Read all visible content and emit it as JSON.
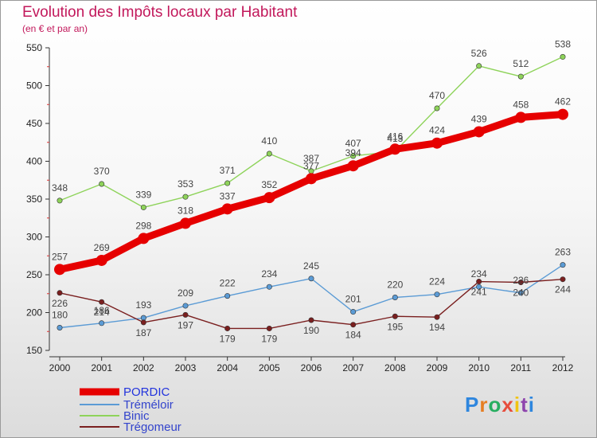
{
  "header": {
    "title": "Evolution des Impôts locaux par Habitant",
    "subtitle": "(en € et par an)"
  },
  "logo": {
    "text": "Proxiti",
    "letters": [
      "P",
      "r",
      "o",
      "x",
      "i",
      "t",
      "i"
    ]
  },
  "colors": {
    "title": "#c2185b",
    "PORDIC": "#e60000",
    "Tréméloir": "#5b9bd5",
    "Binic": "#8ed35a",
    "Trégomeur": "#7a1f1f"
  },
  "chart_data": {
    "type": "line",
    "title": "Evolution des Impôts locaux par Habitant",
    "subtitle": "(en € et par an)",
    "xlabel": "",
    "ylabel": "",
    "x": [
      2000,
      2001,
      2002,
      2003,
      2004,
      2005,
      2006,
      2007,
      2008,
      2009,
      2010,
      2011,
      2012
    ],
    "ylim": [
      150,
      550
    ],
    "yticks": [
      150,
      200,
      250,
      300,
      350,
      400,
      450,
      500,
      550
    ],
    "grid": false,
    "legend": "bottom-left",
    "series": [
      {
        "name": "PORDIC",
        "color": "#e60000",
        "values": [
          257,
          269,
          298,
          318,
          337,
          352,
          377,
          394,
          416,
          424,
          439,
          458,
          462
        ]
      },
      {
        "name": "Tréméloir",
        "color": "#5b9bd5",
        "values": [
          180,
          186,
          193,
          209,
          222,
          234,
          245,
          201,
          220,
          224,
          234,
          226,
          263
        ]
      },
      {
        "name": "Binic",
        "color": "#8ed35a",
        "values": [
          348,
          370,
          339,
          353,
          371,
          410,
          387,
          407,
          413,
          470,
          526,
          512,
          538
        ]
      },
      {
        "name": "Trégomeur",
        "color": "#7a1f1f",
        "values": [
          226,
          214,
          187,
          197,
          179,
          179,
          190,
          184,
          195,
          194,
          241,
          240,
          244
        ]
      }
    ]
  }
}
